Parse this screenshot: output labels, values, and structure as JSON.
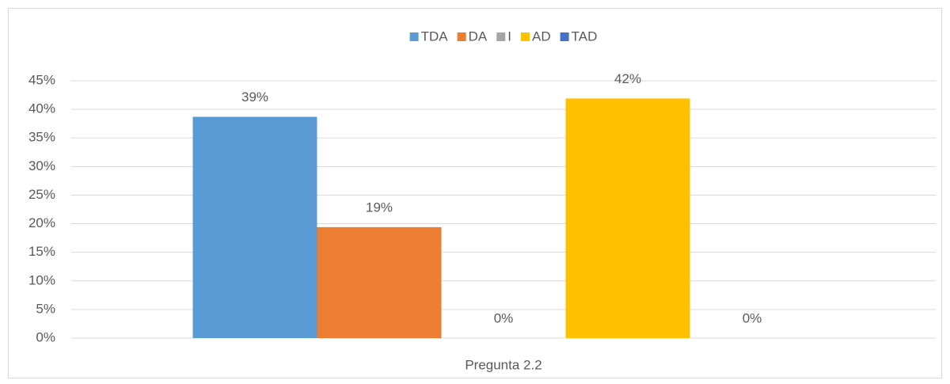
{
  "chart_data": {
    "type": "bar",
    "categories": [
      "Pregunta 2.2"
    ],
    "series": [
      {
        "name": "TDA",
        "color": "#5b9bd5",
        "values": [
          38.7
        ],
        "value_labels": [
          "39%"
        ]
      },
      {
        "name": "DA",
        "color": "#ed7d31",
        "values": [
          19.4
        ],
        "value_labels": [
          "19%"
        ]
      },
      {
        "name": "I",
        "color": "#a5a5a5",
        "values": [
          0
        ],
        "value_labels": [
          "0%"
        ]
      },
      {
        "name": "AD",
        "color": "#ffc000",
        "values": [
          41.9
        ],
        "value_labels": [
          "42%"
        ]
      },
      {
        "name": "TAD",
        "color": "#4472c4",
        "values": [
          0
        ],
        "value_labels": [
          "0%"
        ]
      }
    ],
    "ylim": [
      0,
      45
    ],
    "yticks": [
      {
        "value": 0,
        "label": "0%"
      },
      {
        "value": 5,
        "label": "5%"
      },
      {
        "value": 10,
        "label": "10%"
      },
      {
        "value": 15,
        "label": "15%"
      },
      {
        "value": 20,
        "label": "20%"
      },
      {
        "value": 25,
        "label": "25%"
      },
      {
        "value": 30,
        "label": "30%"
      },
      {
        "value": 35,
        "label": "35%"
      },
      {
        "value": 40,
        "label": "40%"
      },
      {
        "value": 45,
        "label": "45%"
      }
    ],
    "grid": true,
    "legend": "top"
  }
}
